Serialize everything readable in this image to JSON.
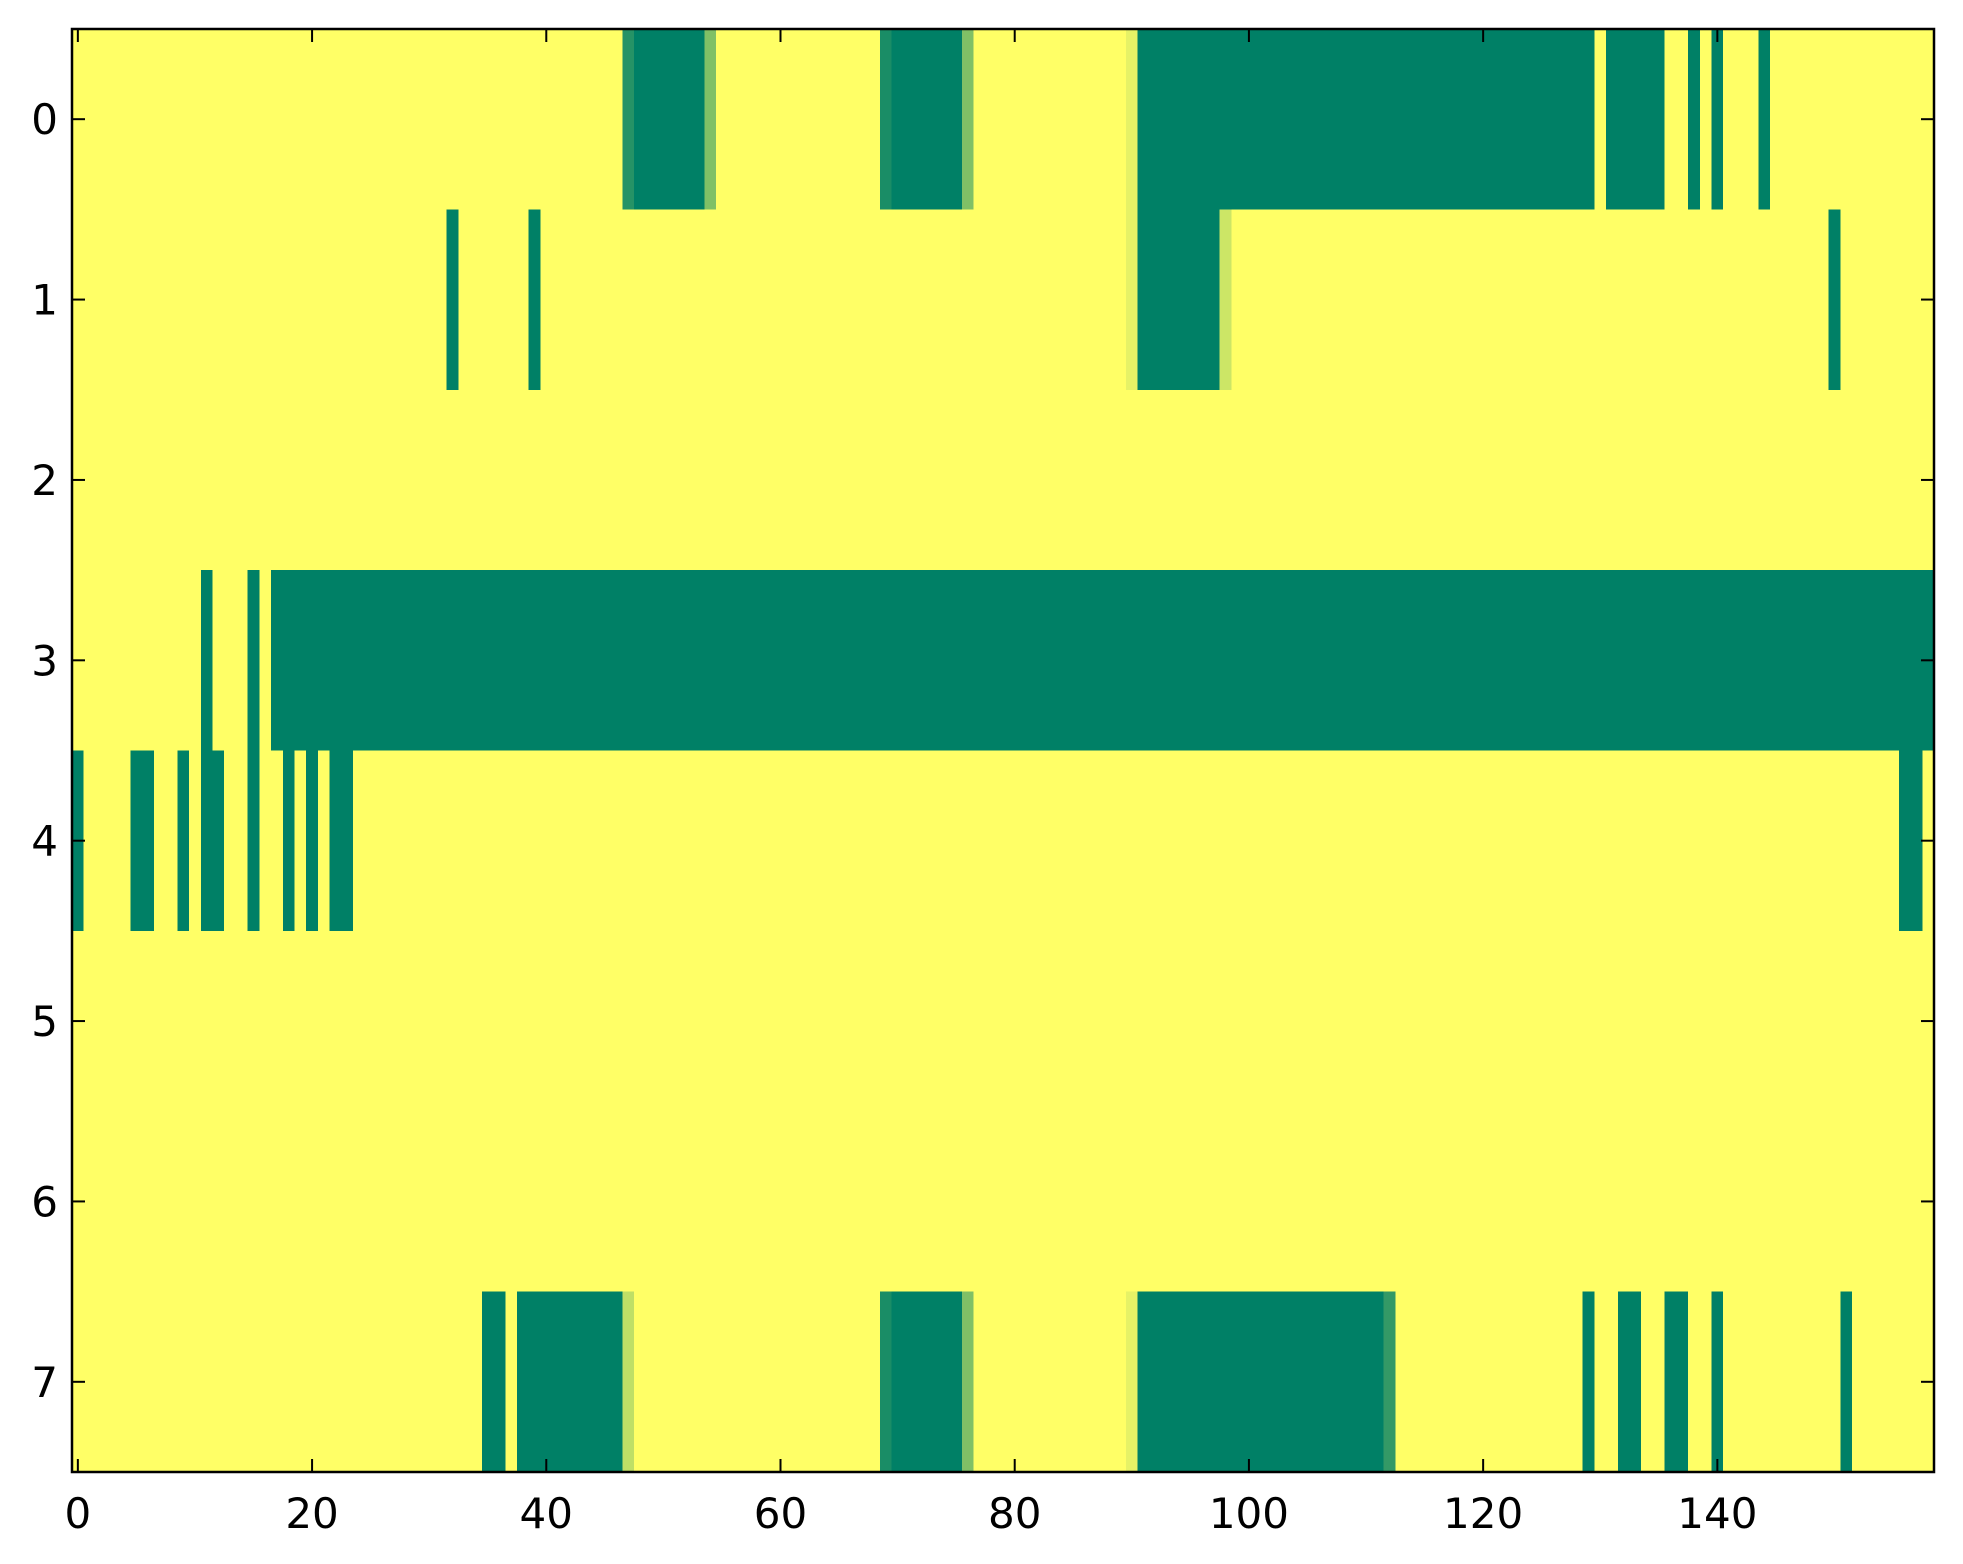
{
  "chart_data": {
    "type": "heatmap",
    "colormap": "summer",
    "color_low": "#008066",
    "color_high": "#ffff66",
    "vmin": 0,
    "vmax": 1,
    "xlim": [
      -0.5,
      158.5
    ],
    "ylim": [
      7.5,
      -0.5
    ],
    "xticks": [
      0,
      20,
      40,
      60,
      80,
      100,
      120,
      140
    ],
    "yticks": [
      0,
      1,
      2,
      3,
      4,
      5,
      6,
      7
    ],
    "z": [
      [
        1,
        1,
        1,
        1,
        1,
        1,
        1,
        1,
        1,
        1,
        1,
        1,
        1,
        1,
        1,
        1,
        1,
        1,
        1,
        1,
        1,
        1,
        1,
        1,
        1,
        1,
        1,
        1,
        1,
        1,
        1,
        1,
        1,
        1,
        1,
        1,
        1,
        1,
        1,
        1,
        1,
        1,
        1,
        1,
        1,
        1,
        1,
        0.15,
        0,
        0,
        0,
        0,
        0,
        0,
        0.5,
        1,
        1,
        1,
        1,
        1,
        1,
        1,
        1,
        1,
        1,
        1,
        1,
        1,
        1,
        0.1,
        0,
        0,
        0,
        0,
        0,
        0,
        0.5,
        1,
        1,
        1,
        1,
        1,
        1,
        1,
        1,
        1,
        1,
        1,
        1,
        1,
        0.9,
        0,
        0,
        0,
        0,
        0,
        0,
        0,
        0,
        0,
        0,
        0,
        0,
        0,
        0,
        0,
        0,
        0,
        0,
        0,
        0,
        0,
        0,
        0,
        0,
        0,
        0,
        0,
        0,
        0,
        0,
        0,
        0,
        0,
        0,
        0,
        0,
        0,
        0,
        0,
        1,
        0,
        0,
        0,
        0,
        0,
        1,
        1,
        0,
        1,
        0,
        1,
        1,
        1,
        0,
        1,
        1,
        1,
        1,
        1,
        1,
        1,
        1,
        1,
        1,
        1,
        1,
        1,
        1
      ],
      [
        1,
        1,
        1,
        1,
        1,
        1,
        1,
        1,
        1,
        1,
        1,
        1,
        1,
        1,
        1,
        1,
        1,
        1,
        1,
        1,
        1,
        1,
        1,
        1,
        1,
        1,
        1,
        1,
        1,
        1,
        1,
        1,
        0,
        1,
        1,
        1,
        1,
        1,
        1,
        0,
        1,
        1,
        1,
        1,
        1,
        1,
        1,
        1,
        1,
        1,
        1,
        1,
        1,
        1,
        1,
        1,
        1,
        1,
        1,
        1,
        1,
        1,
        1,
        1,
        1,
        1,
        1,
        1,
        1,
        1,
        1,
        1,
        1,
        1,
        1,
        1,
        1,
        1,
        1,
        1,
        1,
        1,
        1,
        1,
        1,
        1,
        1,
        1,
        1,
        1,
        0.9,
        0,
        0,
        0,
        0,
        0,
        0,
        0,
        0.8,
        1,
        1,
        1,
        1,
        1,
        1,
        1,
        1,
        1,
        1,
        1,
        1,
        1,
        1,
        1,
        1,
        1,
        1,
        1,
        1,
        1,
        1,
        1,
        1,
        1,
        1,
        1,
        1,
        1,
        1,
        1,
        1,
        1,
        1,
        1,
        1,
        1,
        1,
        1,
        1,
        1,
        1,
        1,
        1,
        1,
        1,
        1,
        1,
        1,
        1,
        1,
        0,
        1,
        1,
        1,
        1,
        1,
        1,
        1,
        1
      ],
      [
        1,
        1,
        1,
        1,
        1,
        1,
        1,
        1,
        1,
        1,
        1,
        1,
        1,
        1,
        1,
        1,
        1,
        1,
        1,
        1,
        1,
        1,
        1,
        1,
        1,
        1,
        1,
        1,
        1,
        1,
        1,
        1,
        1,
        1,
        1,
        1,
        1,
        1,
        1,
        1,
        1,
        1,
        1,
        1,
        1,
        1,
        1,
        1,
        1,
        1,
        1,
        1,
        1,
        1,
        1,
        1,
        1,
        1,
        1,
        1,
        1,
        1,
        1,
        1,
        1,
        1,
        1,
        1,
        1,
        1,
        1,
        1,
        1,
        1,
        1,
        1,
        1,
        1,
        1,
        1,
        1,
        1,
        1,
        1,
        1,
        1,
        1,
        1,
        1,
        1,
        1,
        1,
        1,
        1,
        1,
        1,
        1,
        1,
        1,
        1,
        1,
        1,
        1,
        1,
        1,
        1,
        1,
        1,
        1,
        1,
        1,
        1,
        1,
        1,
        1,
        1,
        1,
        1,
        1,
        1,
        1,
        1,
        1,
        1,
        1,
        1,
        1,
        1,
        1,
        1,
        1,
        1,
        1,
        1,
        1,
        1,
        1,
        1,
        1,
        1,
        1,
        1,
        1,
        1,
        1,
        1,
        1,
        1,
        1,
        1,
        1,
        1,
        1,
        1,
        1,
        1,
        1,
        1,
        1
      ],
      [
        1,
        1,
        1,
        1,
        1,
        1,
        1,
        1,
        1,
        1,
        1,
        0,
        1,
        1,
        1,
        0,
        1,
        0,
        0,
        0,
        0,
        0,
        0,
        0,
        0,
        0,
        0,
        0,
        0,
        0,
        0,
        0,
        0,
        0,
        0,
        0,
        0,
        0,
        0,
        0,
        0,
        0,
        0,
        0,
        0,
        0,
        0,
        0,
        0,
        0,
        0,
        0,
        0,
        0,
        0,
        0,
        0,
        0,
        0,
        0,
        0,
        0,
        0,
        0,
        0,
        0,
        0,
        0,
        0,
        0,
        0,
        0,
        0,
        0,
        0,
        0,
        0,
        0,
        0,
        0,
        0,
        0,
        0,
        0,
        0,
        0,
        0,
        0,
        0,
        0,
        0,
        0,
        0,
        0,
        0,
        0,
        0,
        0,
        0,
        0,
        0,
        0,
        0,
        0,
        0,
        0,
        0,
        0,
        0,
        0,
        0,
        0,
        0,
        0,
        0,
        0,
        0,
        0,
        0,
        0,
        0,
        0,
        0,
        0,
        0,
        0,
        0,
        0,
        0,
        0,
        0,
        0,
        0,
        0,
        0,
        0,
        0,
        0,
        0,
        0,
        0,
        0,
        0,
        0,
        0,
        0,
        0,
        0,
        0,
        0,
        0,
        0,
        0,
        0,
        0,
        0,
        0,
        0,
        0
      ],
      [
        0,
        1,
        1,
        1,
        1,
        0,
        0,
        1,
        1,
        0,
        1,
        0,
        0,
        1,
        1,
        0,
        1,
        1,
        0,
        1,
        0,
        1,
        0,
        0,
        1,
        1,
        1,
        1,
        1,
        1,
        1,
        1,
        1,
        1,
        1,
        1,
        1,
        1,
        1,
        1,
        1,
        1,
        1,
        1,
        1,
        1,
        1,
        1,
        1,
        1,
        1,
        1,
        1,
        1,
        1,
        1,
        1,
        1,
        1,
        1,
        1,
        1,
        1,
        1,
        1,
        1,
        1,
        1,
        1,
        1,
        1,
        1,
        1,
        1,
        1,
        1,
        1,
        1,
        1,
        1,
        1,
        1,
        1,
        1,
        1,
        1,
        1,
        1,
        1,
        1,
        1,
        1,
        1,
        1,
        1,
        1,
        1,
        1,
        1,
        1,
        1,
        1,
        1,
        1,
        1,
        1,
        1,
        1,
        1,
        1,
        1,
        1,
        1,
        1,
        1,
        1,
        1,
        1,
        1,
        1,
        1,
        1,
        1,
        1,
        1,
        1,
        1,
        1,
        1,
        1,
        1,
        1,
        1,
        1,
        1,
        1,
        1,
        1,
        1,
        1,
        1,
        1,
        1,
        1,
        1,
        1,
        1,
        1,
        1,
        1,
        1,
        1,
        1,
        1,
        1,
        1,
        0,
        0,
        1
      ],
      [
        1,
        1,
        1,
        1,
        1,
        1,
        1,
        1,
        1,
        1,
        1,
        1,
        1,
        1,
        1,
        1,
        1,
        1,
        1,
        1,
        1,
        1,
        1,
        1,
        1,
        1,
        1,
        1,
        1,
        1,
        1,
        1,
        1,
        1,
        1,
        1,
        1,
        1,
        1,
        1,
        1,
        1,
        1,
        1,
        1,
        1,
        1,
        1,
        1,
        1,
        1,
        1,
        1,
        1,
        1,
        1,
        1,
        1,
        1,
        1,
        1,
        1,
        1,
        1,
        1,
        1,
        1,
        1,
        1,
        1,
        1,
        1,
        1,
        1,
        1,
        1,
        1,
        1,
        1,
        1,
        1,
        1,
        1,
        1,
        1,
        1,
        1,
        1,
        1,
        1,
        1,
        1,
        1,
        1,
        1,
        1,
        1,
        1,
        1,
        1,
        1,
        1,
        1,
        1,
        1,
        1,
        1,
        1,
        1,
        1,
        1,
        1,
        1,
        1,
        1,
        1,
        1,
        1,
        1,
        1,
        1,
        1,
        1,
        1,
        1,
        1,
        1,
        1,
        1,
        1,
        1,
        1,
        1,
        1,
        1,
        1,
        1,
        1,
        1,
        1,
        1,
        1,
        1,
        1,
        1,
        1,
        1,
        1,
        1,
        1,
        1,
        1,
        1,
        1,
        1,
        1,
        1,
        1,
        1
      ],
      [
        1,
        1,
        1,
        1,
        1,
        1,
        1,
        1,
        1,
        1,
        1,
        1,
        1,
        1,
        1,
        1,
        1,
        1,
        1,
        1,
        1,
        1,
        1,
        1,
        1,
        1,
        1,
        1,
        1,
        1,
        1,
        1,
        1,
        1,
        1,
        1,
        1,
        1,
        1,
        1,
        1,
        1,
        1,
        1,
        1,
        1,
        1,
        1,
        1,
        1,
        1,
        1,
        1,
        1,
        1,
        1,
        1,
        1,
        1,
        1,
        1,
        1,
        1,
        1,
        1,
        1,
        1,
        1,
        1,
        1,
        1,
        1,
        1,
        1,
        1,
        1,
        1,
        1,
        1,
        1,
        1,
        1,
        1,
        1,
        1,
        1,
        1,
        1,
        1,
        1,
        1,
        1,
        1,
        1,
        1,
        1,
        1,
        1,
        1,
        1,
        1,
        1,
        1,
        1,
        1,
        1,
        1,
        1,
        1,
        1,
        1,
        1,
        1,
        1,
        1,
        1,
        1,
        1,
        1,
        1,
        1,
        1,
        1,
        1,
        1,
        1,
        1,
        1,
        1,
        1,
        1,
        1,
        1,
        1,
        1,
        1,
        1,
        1,
        1,
        1,
        1,
        1,
        1,
        1,
        1,
        1,
        1,
        1,
        1,
        1,
        1,
        1,
        1,
        1,
        1,
        1,
        1,
        1,
        1
      ],
      [
        1,
        1,
        1,
        1,
        1,
        1,
        1,
        1,
        1,
        1,
        1,
        1,
        1,
        1,
        1,
        1,
        1,
        1,
        1,
        1,
        1,
        1,
        1,
        1,
        1,
        1,
        1,
        1,
        1,
        1,
        1,
        1,
        1,
        1,
        1,
        0,
        0,
        1,
        0,
        0,
        0,
        0,
        0,
        0,
        0,
        0,
        0,
        0.75,
        1,
        1,
        1,
        1,
        1,
        1,
        1,
        1,
        1,
        1,
        1,
        1,
        1,
        1,
        1,
        1,
        1,
        1,
        1,
        1,
        1,
        0.1,
        0,
        0,
        0,
        0,
        0,
        0,
        0.5,
        1,
        1,
        1,
        1,
        1,
        1,
        1,
        1,
        1,
        1,
        1,
        1,
        1,
        0.9,
        0,
        0,
        0,
        0,
        0,
        0,
        0,
        0,
        0,
        0,
        0,
        0,
        0,
        0,
        0,
        0,
        0,
        0,
        0,
        0,
        0,
        0.2,
        1,
        1,
        1,
        1,
        1,
        1,
        1,
        1,
        1,
        1,
        1,
        1,
        1,
        1,
        1,
        1,
        0,
        1,
        1,
        0,
        0,
        1,
        1,
        0,
        0,
        1,
        1,
        0,
        1,
        1,
        1,
        1,
        1,
        1,
        1,
        1,
        1,
        1,
        0,
        1,
        1,
        1,
        1,
        1,
        1,
        1
      ]
    ]
  }
}
